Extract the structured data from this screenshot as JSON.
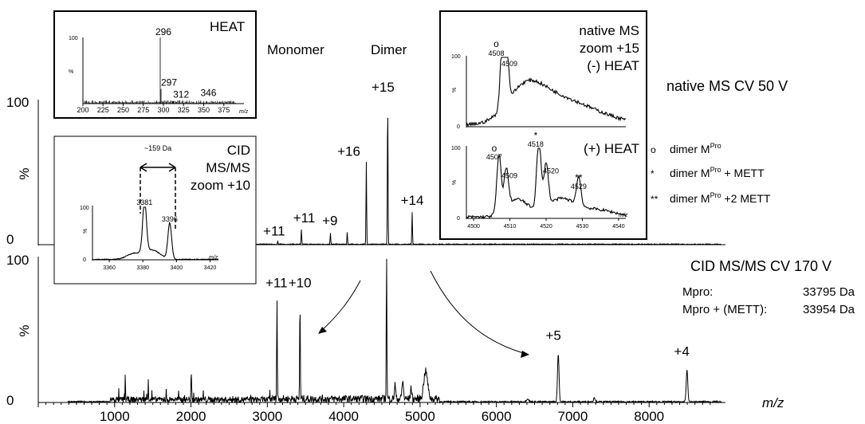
{
  "chart_data": [
    {
      "type": "line",
      "name": "native-ms",
      "title": "native MS CV 50 V",
      "ylabel": "%",
      "ylim": [
        0,
        100
      ],
      "y_ticks": [
        "0",
        "100"
      ],
      "xlim": [
        0,
        9000
      ],
      "peaks": [
        {
          "mz": 3070,
          "intensity": 2,
          "label": "+11"
        },
        {
          "mz": 3380,
          "intensity": 10,
          "label": "+11"
        },
        {
          "mz": 3760,
          "intensity": 8,
          "label": "+9"
        },
        {
          "mz": 3980,
          "intensity": 8,
          "label": ""
        },
        {
          "mz": 4230,
          "intensity": 57,
          "label": "+16"
        },
        {
          "mz": 4510,
          "intensity": 100,
          "label": "+15"
        },
        {
          "mz": 4830,
          "intensity": 22,
          "label": "+14"
        }
      ],
      "group_labels": [
        "Monomer",
        "Dimer"
      ],
      "legend": [
        {
          "symbol": "o",
          "text": "dimer M",
          "sup": "Pro",
          "suffix": ""
        },
        {
          "symbol": "*",
          "text": "dimer M",
          "sup": "Pro",
          "suffix": " + METT"
        },
        {
          "symbol": "**",
          "text": "dimer M",
          "sup": "Pro",
          "suffix": " +2 METT"
        }
      ]
    },
    {
      "type": "line",
      "name": "cid-ms-ms",
      "title": "CID MS/MS CV 170 V",
      "ylabel": "%",
      "xlabel": "m/z",
      "ylim": [
        0,
        100
      ],
      "y_ticks": [
        "0",
        "100"
      ],
      "xlim": [
        0,
        9000
      ],
      "x_ticks": [
        1000,
        2000,
        3000,
        4000,
        5000,
        6000,
        7000,
        8000
      ],
      "peaks": [
        {
          "mz": 3080,
          "intensity": 69,
          "label": "+11"
        },
        {
          "mz": 3380,
          "intensity": 69,
          "label": "+10"
        },
        {
          "mz": 4510,
          "intensity": 100,
          "label": ""
        },
        {
          "mz": 6750,
          "intensity": 33,
          "label": "+5"
        },
        {
          "mz": 8430,
          "intensity": 22,
          "label": "+4"
        }
      ],
      "masses": [
        {
          "name": "Mpro:",
          "value": "33795 Da"
        },
        {
          "name": "Mpro + (METT):",
          "value": "33954 Da"
        }
      ]
    },
    {
      "type": "line",
      "name": "inset-heat",
      "title": "HEAT",
      "xlabel": "m/z",
      "ylabel": "%",
      "y_ticks": [
        "100"
      ],
      "xlim": [
        200,
        400
      ],
      "x_ticks": [
        200,
        225,
        250,
        275,
        300,
        325,
        350,
        375
      ],
      "peaks": [
        {
          "mz": 296,
          "intensity": 100,
          "label": "296"
        },
        {
          "mz": 297,
          "intensity": 22,
          "label": "297"
        },
        {
          "mz": 312,
          "intensity": 4,
          "label": "312"
        },
        {
          "mz": 346,
          "intensity": 2,
          "label": "346"
        }
      ]
    },
    {
      "type": "line",
      "name": "inset-cid-zoom",
      "title_lines": [
        "CID",
        "MS/MS",
        "zoom +10"
      ],
      "annotation": "~159 Da",
      "xlabel": "m/z",
      "ylabel": "%",
      "y_ticks": [
        "0",
        "100"
      ],
      "xlim": [
        3350,
        3425
      ],
      "x_ticks": [
        3360,
        3380,
        3400,
        3420
      ],
      "peaks": [
        {
          "mz": 3381,
          "intensity": 100,
          "label": "3381"
        },
        {
          "mz": 3396,
          "intensity": 68,
          "label": "3396"
        }
      ]
    },
    {
      "type": "line",
      "name": "inset-native-zoom",
      "title_lines": [
        "native MS",
        "zoom +15",
        "(-) HEAT"
      ],
      "second_title": "(+) HEAT",
      "xlabel": "m/z",
      "ylabel": "%",
      "y_ticks": [
        "0",
        "100"
      ],
      "xlim": [
        4498,
        4542
      ],
      "x_ticks": [
        4500,
        4510,
        4520,
        4530,
        4540
      ],
      "panel_a_peaks": [
        {
          "mz": 4508,
          "intensity": 100,
          "label": "4508",
          "mark": "o"
        },
        {
          "mz": 4509,
          "intensity": 85,
          "label": "4509",
          "mark": ""
        }
      ],
      "panel_b_peaks": [
        {
          "mz": 4507,
          "intensity": 82,
          "label": "4507",
          "mark": "o"
        },
        {
          "mz": 4509,
          "intensity": 55,
          "label": "4509",
          "mark": ""
        },
        {
          "mz": 4518,
          "intensity": 100,
          "label": "4518",
          "mark": "*"
        },
        {
          "mz": 4520,
          "intensity": 62,
          "label": "4520",
          "mark": ""
        },
        {
          "mz": 4529,
          "intensity": 40,
          "label": "4529",
          "mark": "**"
        }
      ]
    }
  ]
}
